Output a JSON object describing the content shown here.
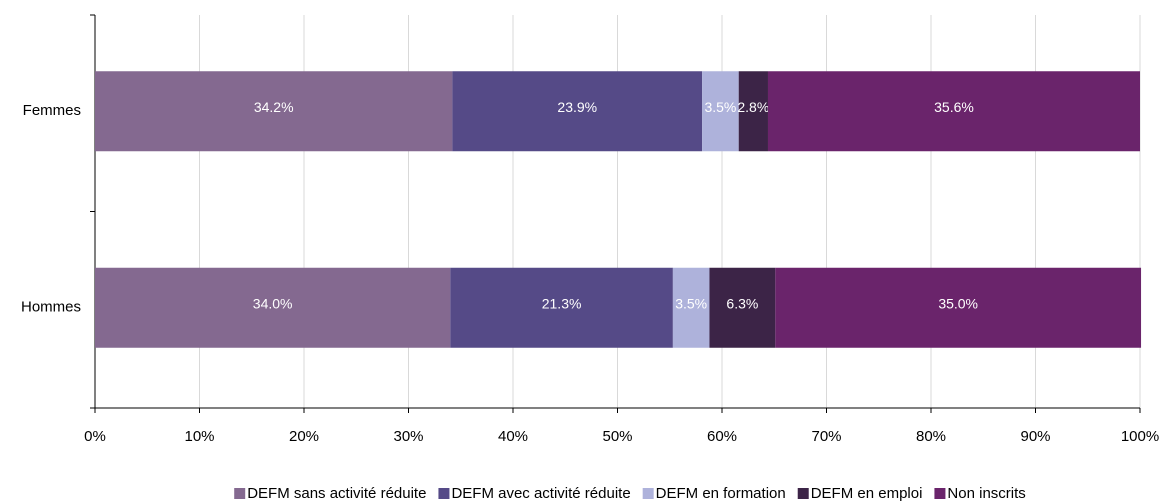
{
  "chart_data": {
    "type": "stacked_bar_horizontal",
    "categories": [
      "Femmes",
      "Hommes"
    ],
    "series": [
      {
        "name": "DEFM sans activité réduite",
        "color": "#846990",
        "values": [
          34.2,
          34.0
        ],
        "value_labels": [
          "34.2%",
          "34.0%"
        ]
      },
      {
        "name": "DEFM avec activité réduite",
        "color": "#554a87",
        "values": [
          23.9,
          21.3
        ],
        "value_labels": [
          "23.9%",
          "21.3%"
        ]
      },
      {
        "name": "DEFM en formation",
        "color": "#aeb2db",
        "values": [
          3.5,
          3.5
        ],
        "value_labels": [
          "3.5%",
          "3.5%"
        ]
      },
      {
        "name": "DEFM en emploi",
        "color": "#3c2447",
        "values": [
          2.8,
          6.3
        ],
        "value_labels": [
          "2.8%",
          "6.3%"
        ]
      },
      {
        "name": "Non inscrits",
        "color": "#6a246b",
        "values": [
          35.6,
          35.0
        ],
        "value_labels": [
          "35.6%",
          "35.0%"
        ]
      }
    ],
    "xlim": [
      0,
      100
    ],
    "xticks": [
      {
        "value": 0,
        "label": "0%"
      },
      {
        "value": 10,
        "label": "10%"
      },
      {
        "value": 20,
        "label": "20%"
      },
      {
        "value": 30,
        "label": "30%"
      },
      {
        "value": 40,
        "label": "40%"
      },
      {
        "value": 50,
        "label": "50%"
      },
      {
        "value": 60,
        "label": "60%"
      },
      {
        "value": 70,
        "label": "70%"
      },
      {
        "value": 80,
        "label": "80%"
      },
      {
        "value": 90,
        "label": "90%"
      },
      {
        "value": 100,
        "label": "100%"
      }
    ],
    "grid": true,
    "legend": "bottom"
  }
}
